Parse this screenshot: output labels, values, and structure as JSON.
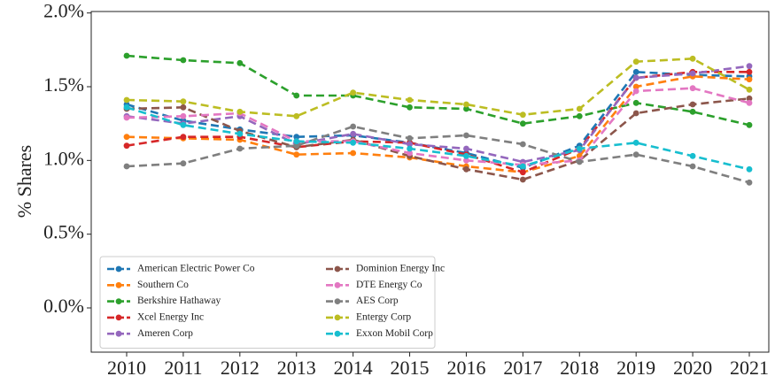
{
  "chart_data": {
    "type": "line",
    "ylabel": "% Shares",
    "categories": [
      "2010",
      "2011",
      "2012",
      "2013",
      "2014",
      "2015",
      "2016",
      "2017",
      "2018",
      "2019",
      "2020",
      "2021"
    ],
    "ylim": [
      -0.3,
      2.01
    ],
    "yticks": [
      {
        "value": 0,
        "label": "0.0%"
      },
      {
        "value": 0.5,
        "label": "0.5%"
      },
      {
        "value": 1,
        "label": "1.0%"
      },
      {
        "value": 1.5,
        "label": "1.5%"
      },
      {
        "value": 2,
        "label": "2.0%"
      }
    ],
    "legend": "lower left",
    "series": [
      {
        "name": "American Electric Power Co",
        "color": "#1f77b4",
        "values": [
          1.38,
          1.27,
          1.21,
          1.16,
          1.17,
          1.12,
          1.05,
          0.95,
          1.1,
          1.6,
          1.58,
          1.57
        ]
      },
      {
        "name": "Southern Co",
        "color": "#ff7f0e",
        "values": [
          1.16,
          1.15,
          1.14,
          1.04,
          1.05,
          1.02,
          0.96,
          0.92,
          1.03,
          1.5,
          1.57,
          1.55
        ]
      },
      {
        "name": "Berkshire Hathaway",
        "color": "#2ca02c",
        "values": [
          1.71,
          1.68,
          1.66,
          1.44,
          1.44,
          1.36,
          1.35,
          1.25,
          1.3,
          1.39,
          1.33,
          1.24
        ]
      },
      {
        "name": "Xcel Energy Inc",
        "color": "#d62728",
        "values": [
          1.1,
          1.16,
          1.16,
          1.09,
          1.13,
          1.12,
          1.04,
          0.92,
          1.08,
          1.56,
          1.6,
          1.6
        ]
      },
      {
        "name": "Ameren Corp",
        "color": "#9467bd",
        "values": [
          1.3,
          1.25,
          1.3,
          1.11,
          1.18,
          1.11,
          1.08,
          0.99,
          1.07,
          1.56,
          1.59,
          1.64
        ]
      },
      {
        "name": "Dominion Energy Inc",
        "color": "#8c564b",
        "values": [
          1.35,
          1.36,
          1.2,
          1.09,
          1.14,
          1.03,
          0.94,
          0.87,
          1.0,
          1.32,
          1.38,
          1.42
        ]
      },
      {
        "name": "DTE Energy Co",
        "color": "#e377c2",
        "values": [
          1.29,
          1.3,
          1.32,
          1.13,
          1.13,
          1.05,
          1.0,
          0.97,
          1.0,
          1.47,
          1.49,
          1.39
        ]
      },
      {
        "name": "AES Corp",
        "color": "#7f7f7f",
        "values": [
          0.96,
          0.98,
          1.08,
          1.1,
          1.23,
          1.15,
          1.17,
          1.11,
          0.99,
          1.04,
          0.96,
          0.85
        ]
      },
      {
        "name": "Entergy Corp",
        "color": "#bcbd22",
        "values": [
          1.41,
          1.4,
          1.33,
          1.3,
          1.46,
          1.41,
          1.38,
          1.31,
          1.35,
          1.67,
          1.69,
          1.48
        ]
      },
      {
        "name": "Exxon Mobil Corp",
        "color": "#17becf",
        "values": [
          1.36,
          1.24,
          1.18,
          1.13,
          1.12,
          1.08,
          1.03,
          0.96,
          1.08,
          1.12,
          1.03,
          0.94
        ]
      }
    ]
  }
}
